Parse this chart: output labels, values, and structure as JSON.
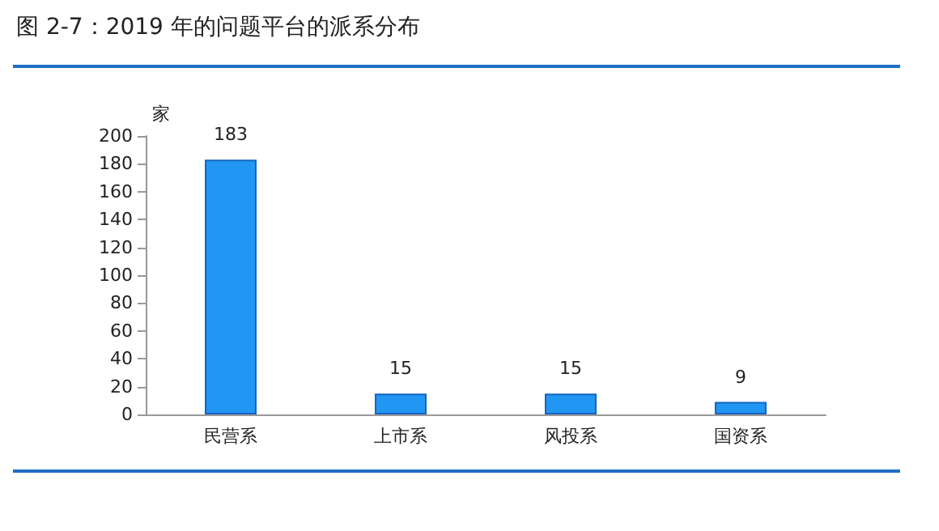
{
  "chart_data": {
    "type": "bar",
    "title": "图 2-7：2019 年的问题平台的派系分布",
    "ylabel": "家",
    "categories": [
      "民营系",
      "上市系",
      "风投系",
      "国资系"
    ],
    "values": [
      183,
      15,
      15,
      9
    ],
    "color": "#2196f3",
    "ylim": [
      0,
      200
    ],
    "yticks": [
      0,
      20,
      40,
      60,
      80,
      100,
      120,
      140,
      160,
      180,
      200
    ],
    "grid": false,
    "data_labels": true
  }
}
